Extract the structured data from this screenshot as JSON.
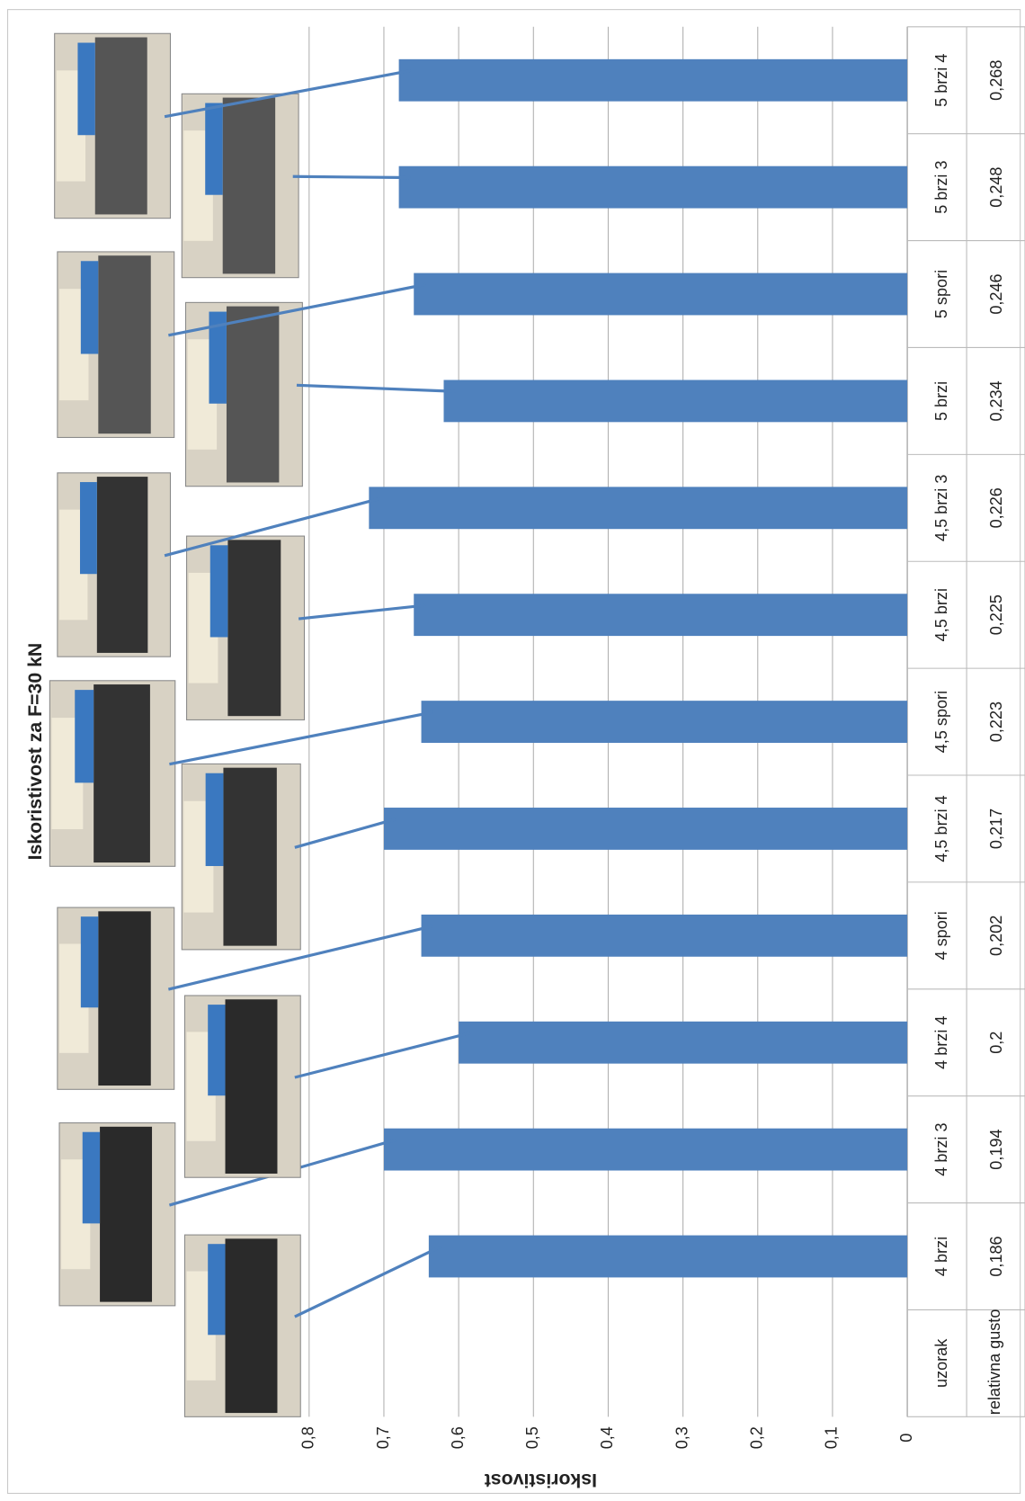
{
  "chart_data": {
    "type": "bar",
    "orientation": "rotated",
    "title": "Iskoristivost za F=30 kN",
    "y_label": "Iskoristivost",
    "categories": [
      "4 brzi",
      "4 brzi 3",
      "4 brzi 4",
      "4 spori",
      "4,5 brzi 4",
      "4,5 spori",
      "4,5 brzi",
      "4,5 brzi 3",
      "5 brzi",
      "5 spori",
      "5 brzi 3",
      "5 brzi 4"
    ],
    "values": [
      0.64,
      0.7,
      0.6,
      0.65,
      0.7,
      0.65,
      0.66,
      0.72,
      0.62,
      0.66,
      0.68,
      0.68
    ],
    "color": "#4f81bd",
    "ylim": [
      0,
      0.8
    ],
    "yticks": [
      0,
      {
        "value": 0.1,
        "label": "0,1"
      },
      {
        "value": 0.2,
        "label": "0,2"
      },
      {
        "value": 0.3,
        "label": "0,3"
      },
      {
        "value": 0.4,
        "label": "0,4"
      },
      {
        "value": 0.5,
        "label": "0,5"
      },
      {
        "value": 0.6,
        "label": "0,6"
      },
      {
        "value": 0.7,
        "label": "0,7"
      },
      {
        "value": 0.8,
        "label": "0,8"
      }
    ],
    "grid": true,
    "table": {
      "row_labels": [
        "uzorak",
        "relativna gustoća"
      ],
      "densities": [
        "0,186",
        "0,194",
        "0,2",
        "0,202",
        "0,217",
        "0,223",
        "0,225",
        "0,226",
        "0,234",
        "0,246",
        "0,248",
        "0,268"
      ]
    }
  }
}
